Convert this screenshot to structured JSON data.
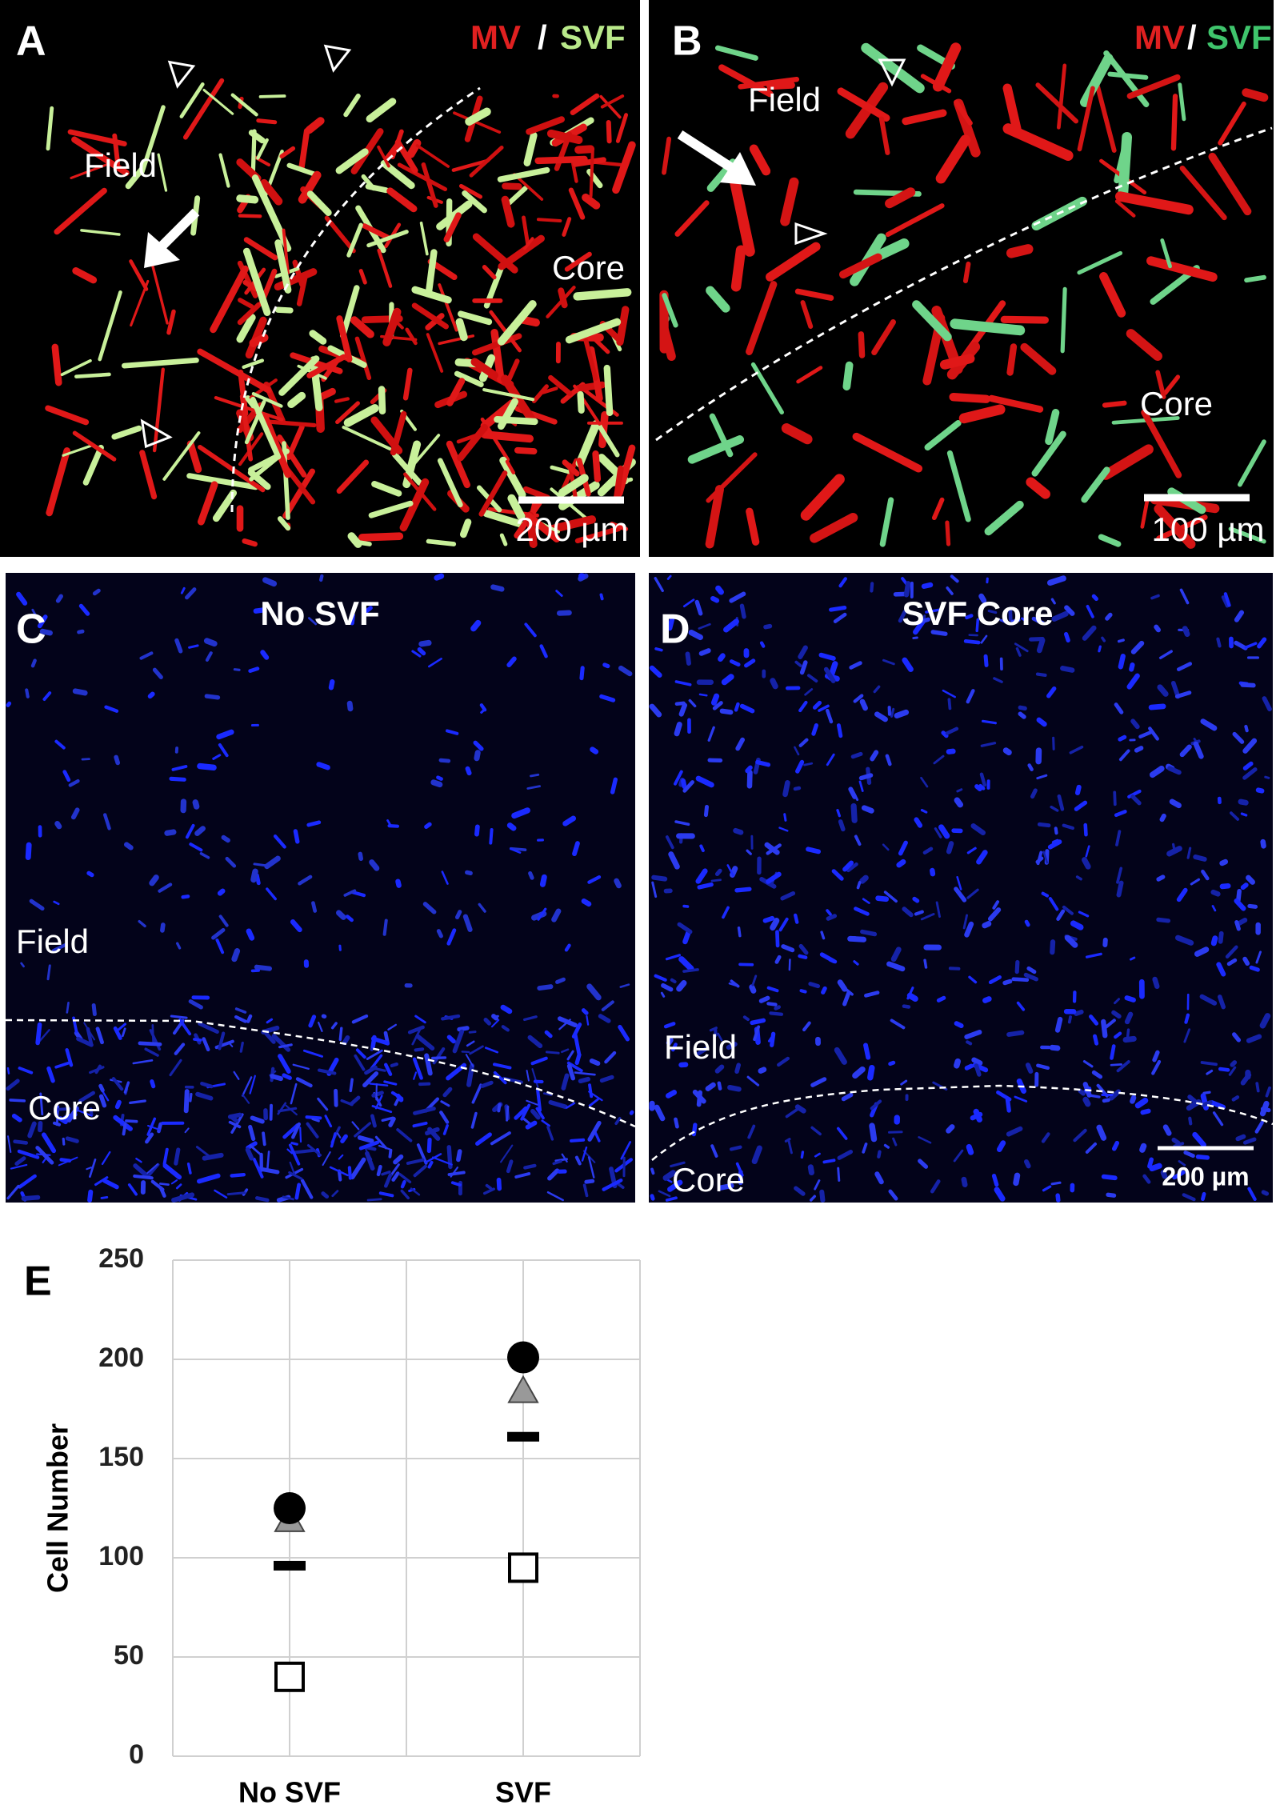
{
  "panels": [
    {
      "letter": "A",
      "legend": [
        "MV",
        "/",
        "SVF"
      ],
      "labels": [
        "Field",
        "Core"
      ],
      "scale_bar": "200 µm"
    },
    {
      "letter": "B",
      "legend": [
        "MV",
        "/",
        "SVF"
      ],
      "labels": [
        "Field",
        "Core"
      ],
      "scale_bar": "100 µm"
    },
    {
      "letter": "C",
      "title": "No SVF",
      "labels": [
        "Field",
        "Core"
      ]
    },
    {
      "letter": "D",
      "title": "SVF Core",
      "labels": [
        "Field",
        "Core"
      ],
      "scale_bar": "200 µm"
    }
  ],
  "chart_data": {
    "type": "scatter",
    "panel_letter": "E",
    "y_label": "Cell Number",
    "categories": [
      "No SVF",
      "SVF"
    ],
    "series": [
      {
        "marker": "circle",
        "color": "#000000",
        "values": [
          125,
          201
        ]
      },
      {
        "marker": "triangle",
        "color": "#999999",
        "values": [
          119,
          184
        ]
      },
      {
        "marker": "dash",
        "color": "#000000",
        "values": [
          96,
          161
        ]
      },
      {
        "marker": "square",
        "color": "#ffffff",
        "values": [
          40,
          95
        ]
      }
    ],
    "ylim": [
      0,
      250
    ],
    "yticks": [
      0,
      50,
      100,
      150,
      200,
      250
    ],
    "grid": true
  }
}
